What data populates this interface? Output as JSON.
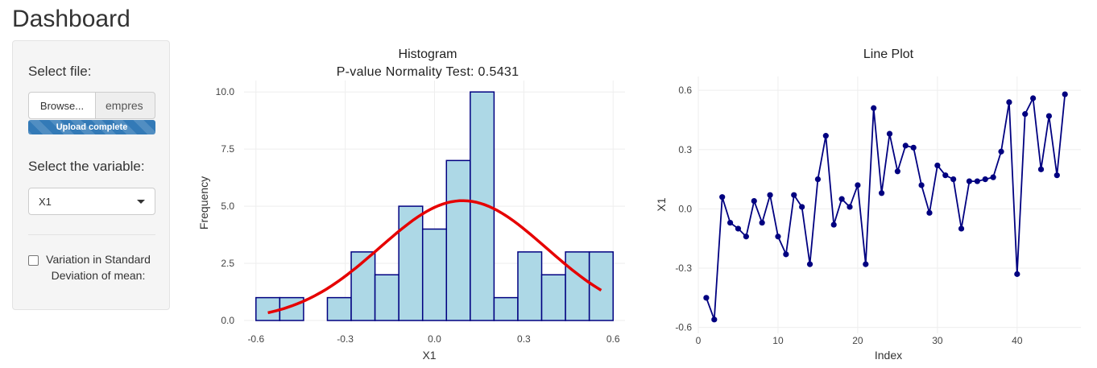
{
  "app": {
    "title": "Dashboard"
  },
  "sidebar": {
    "file_label": "Select file:",
    "browse_label": "Browse...",
    "file_name": "empres",
    "progress_label": "Upload complete",
    "variable_label": "Select the variable:",
    "variable_value": "X1",
    "checkbox_label": "Variation in Standard Deviation of mean:",
    "checkbox_checked": false
  },
  "histogram": {
    "title_line1": "Histogram",
    "title_line2": "P-value Normality Test: 0.5431",
    "chart_data": {
      "type": "bar",
      "title": "Histogram P-value Normality Test: 0.5431",
      "xlabel": "X1",
      "ylabel": "Frequency",
      "xlim": [
        -0.64,
        0.64
      ],
      "ylim": [
        0,
        10.5
      ],
      "bin_width": 0.08,
      "bins": [
        {
          "x0": -0.6,
          "count": 1
        },
        {
          "x0": -0.52,
          "count": 1
        },
        {
          "x0": -0.36,
          "count": 1
        },
        {
          "x0": -0.28,
          "count": 3
        },
        {
          "x0": -0.2,
          "count": 2
        },
        {
          "x0": -0.12,
          "count": 5
        },
        {
          "x0": -0.04,
          "count": 4
        },
        {
          "x0": 0.04,
          "count": 7
        },
        {
          "x0": 0.12,
          "count": 10
        },
        {
          "x0": 0.2,
          "count": 1
        },
        {
          "x0": 0.28,
          "count": 3
        },
        {
          "x0": 0.36,
          "count": 2
        },
        {
          "x0": 0.44,
          "count": 3
        },
        {
          "x0": 0.52,
          "count": 3
        }
      ],
      "normal_curve": {
        "mean": 0.095,
        "sd": 0.28,
        "n": 46
      },
      "x_ticks": [
        -0.6,
        -0.3,
        0.0,
        0.3,
        0.6
      ],
      "x_tick_labels": [
        "-0.6",
        "-0.3",
        "0.0",
        "0.3",
        "0.6"
      ],
      "y_ticks": [
        0,
        2.5,
        5,
        7.5,
        10
      ],
      "y_tick_labels": [
        "0.0",
        "2.5",
        "5.0",
        "7.5",
        "10.0"
      ],
      "grid": true,
      "colors": {
        "bar_fill": "#add8e6",
        "bar_stroke": "#000080",
        "curve": "#e60000"
      }
    }
  },
  "lineplot": {
    "title": "Line Plot",
    "chart_data": {
      "type": "line",
      "title": "Line Plot",
      "xlabel": "Index",
      "ylabel": "X1",
      "xlim": [
        0,
        48
      ],
      "ylim": [
        -0.63,
        0.67
      ],
      "x": [
        1,
        2,
        3,
        4,
        5,
        6,
        7,
        8,
        9,
        10,
        11,
        12,
        13,
        14,
        15,
        16,
        17,
        18,
        19,
        20,
        21,
        22,
        23,
        24,
        25,
        26,
        27,
        28,
        29,
        30,
        31,
        32,
        33,
        34,
        35,
        36,
        37,
        38,
        39,
        40,
        41,
        42,
        43,
        44,
        45,
        46
      ],
      "y": [
        -0.45,
        -0.56,
        0.06,
        -0.07,
        -0.1,
        -0.14,
        0.04,
        -0.07,
        0.07,
        -0.14,
        -0.23,
        0.07,
        0.01,
        -0.28,
        0.15,
        0.37,
        -0.08,
        0.05,
        0.01,
        0.12,
        -0.28,
        0.51,
        0.08,
        0.38,
        0.19,
        0.32,
        0.31,
        0.12,
        -0.02,
        0.22,
        0.17,
        0.15,
        -0.1,
        0.14,
        0.14,
        0.15,
        0.16,
        0.29,
        0.54,
        -0.33,
        0.48,
        0.56,
        0.2,
        0.47,
        0.17,
        0.58
      ],
      "x_ticks": [
        0,
        10,
        20,
        30,
        40
      ],
      "x_tick_labels": [
        "0",
        "10",
        "20",
        "30",
        "40"
      ],
      "y_ticks": [
        -0.6,
        -0.3,
        0.0,
        0.3,
        0.6
      ],
      "y_tick_labels": [
        "-0.6",
        "-0.3",
        "0.0",
        "0.3",
        "0.6"
      ],
      "grid": true,
      "colors": {
        "line": "#000080",
        "marker": "#000080"
      }
    }
  }
}
